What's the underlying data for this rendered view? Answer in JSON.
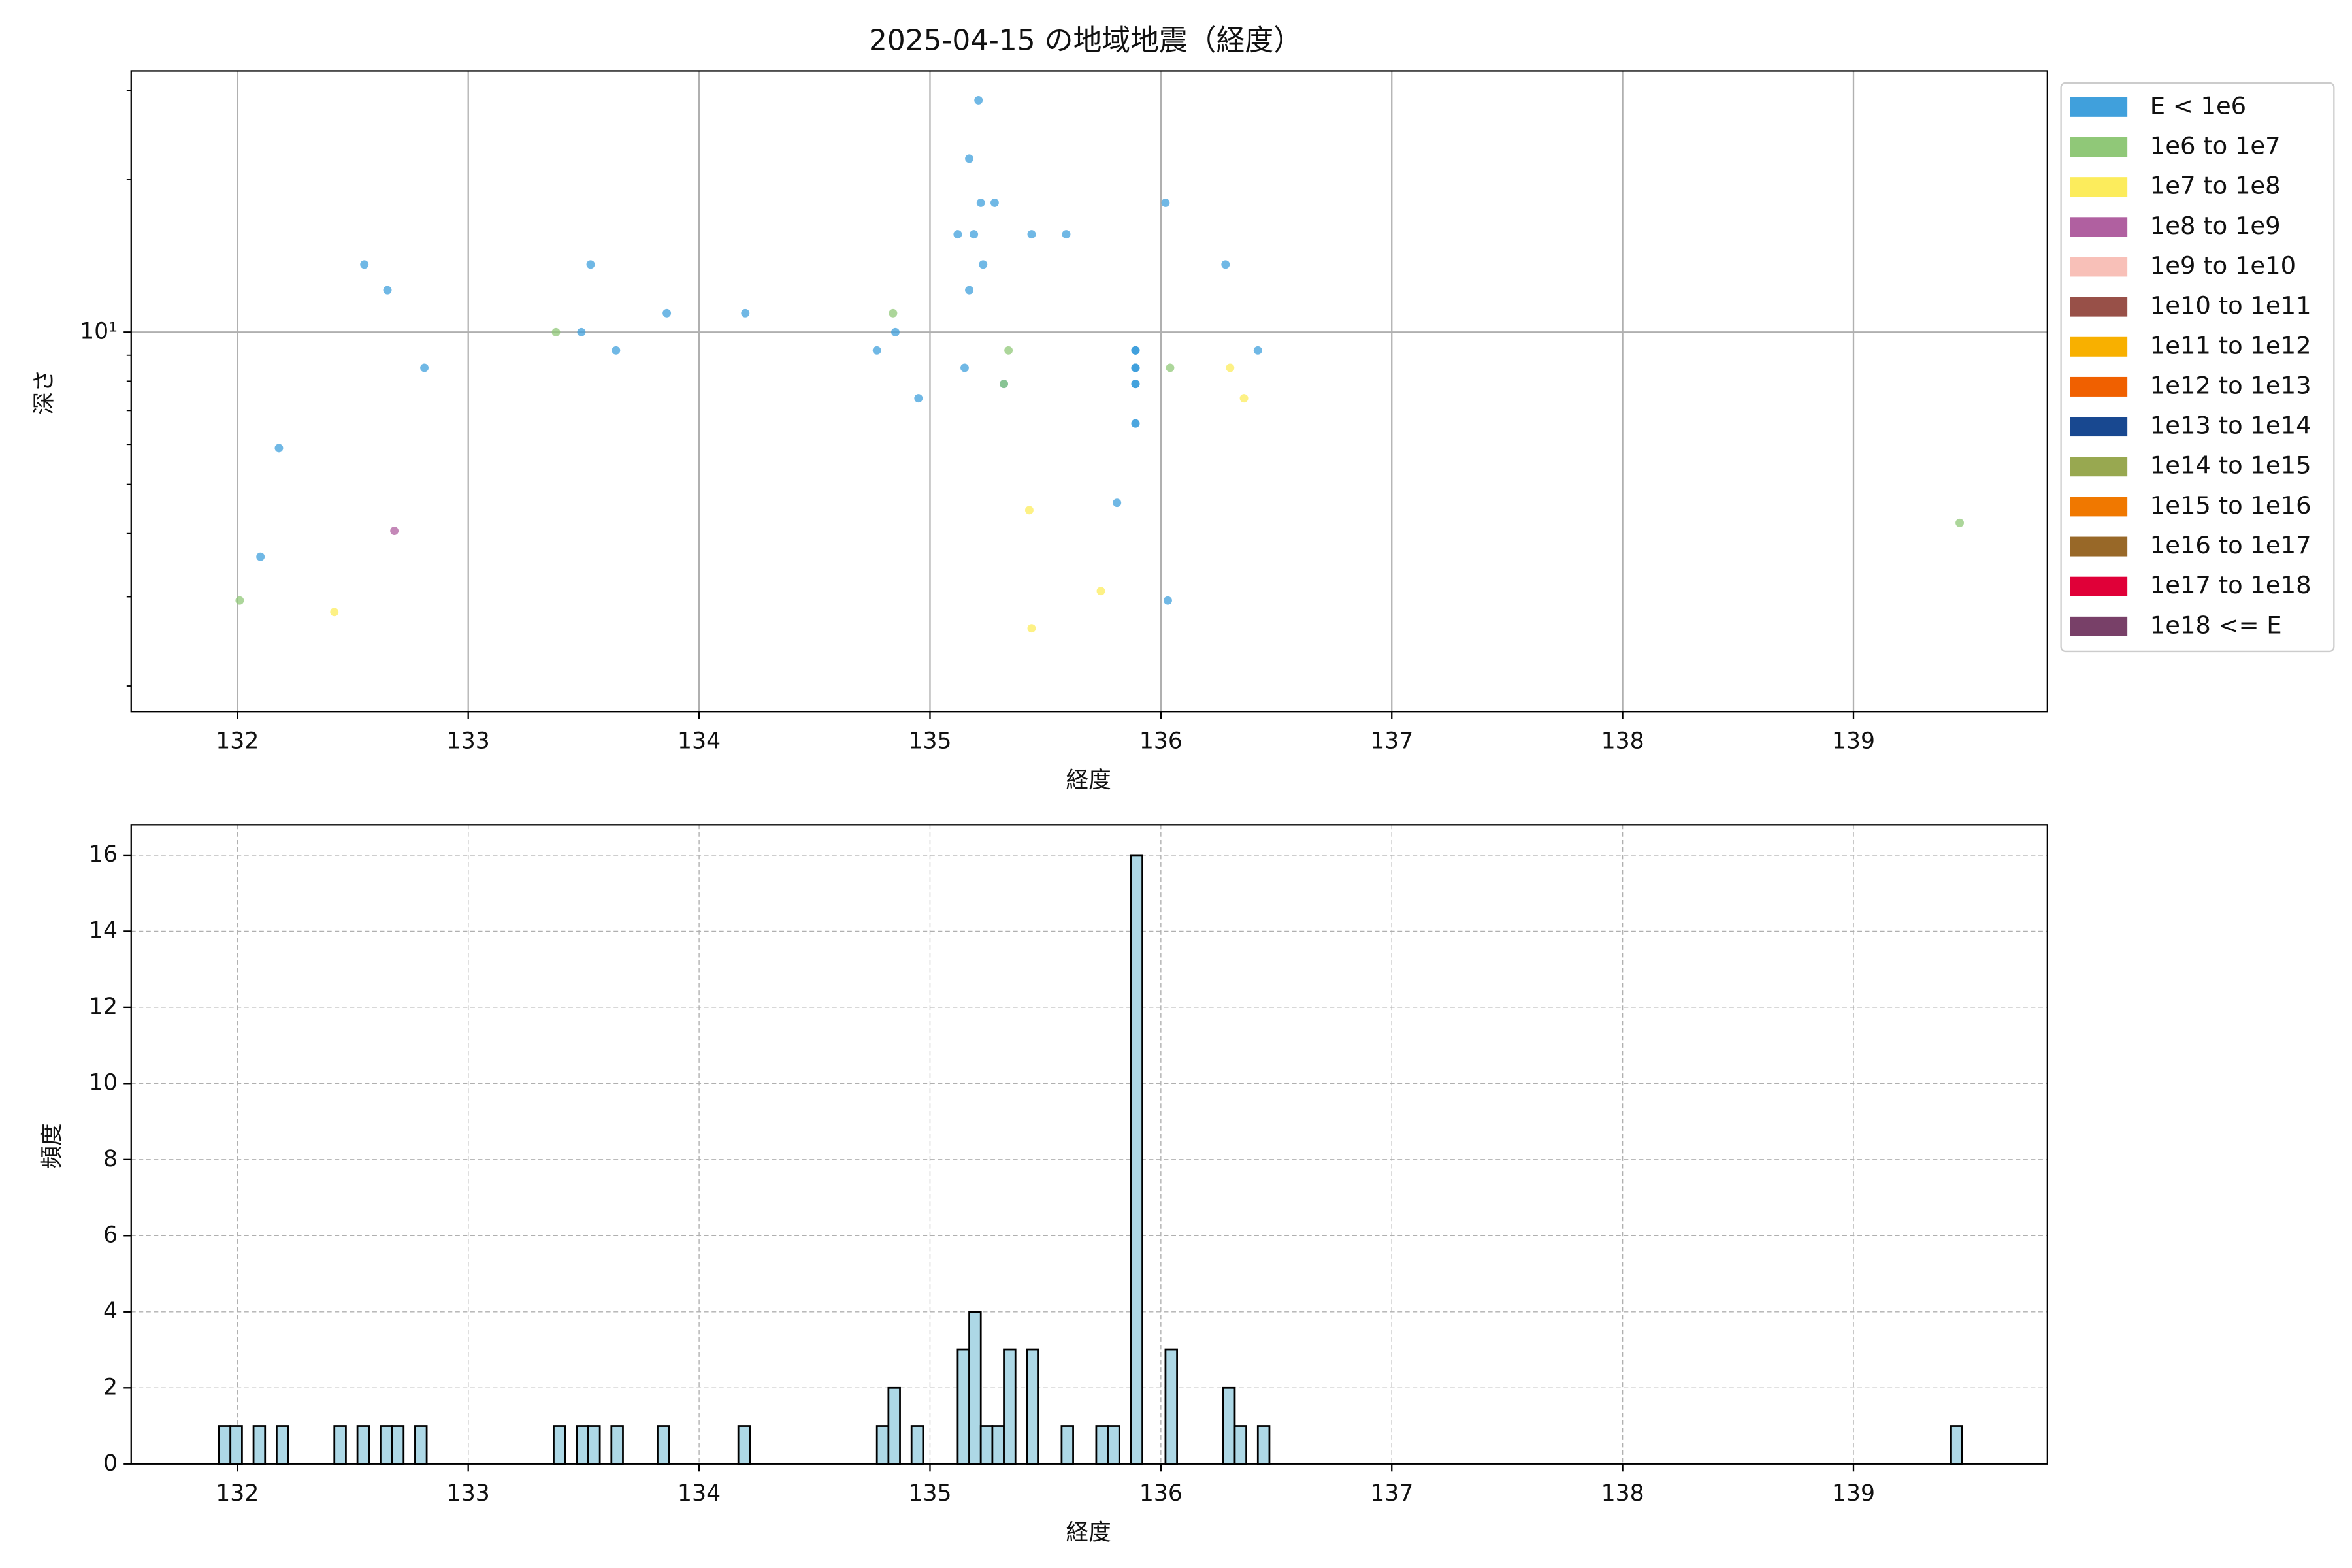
{
  "chart_data": [
    {
      "type": "scatter",
      "title": "2025-04-15 の地域地震（経度）",
      "xlabel": "経度",
      "ylabel": "深さ",
      "xlim": [
        131.54,
        139.84
      ],
      "xticks": [
        132,
        133,
        134,
        135,
        136,
        137,
        138,
        139
      ],
      "ylim": [
        1.78,
        32.8
      ],
      "yscale": "log",
      "yticks": [
        {
          "value": 10,
          "label": "10¹"
        }
      ],
      "yminorticks": [
        2,
        3,
        4,
        5,
        6,
        7,
        8,
        9,
        20,
        30
      ],
      "grid": true,
      "legend": "outside right",
      "series": [
        {
          "name": "E < 1e6",
          "color": "#40a0dc",
          "x": [
            132.55,
            132.65,
            132.81,
            132.18,
            132.1,
            133.53,
            133.49,
            133.64,
            133.86,
            134.2,
            134.77,
            134.85,
            134.95,
            135.21,
            135.17,
            135.22,
            135.28,
            135.12,
            135.19,
            135.23,
            135.17,
            135.15,
            135.32,
            135.44,
            135.59,
            135.89,
            135.89,
            135.89,
            135.89,
            135.89,
            135.89,
            135.89,
            135.89,
            135.89,
            135.89,
            135.89,
            135.89,
            135.89,
            135.89,
            135.89,
            135.89,
            135.81,
            136.02,
            136.03,
            136.28,
            136.42
          ],
          "values": [
            13.6,
            12.1,
            8.5,
            5.9,
            3.6,
            13.6,
            10,
            9.2,
            10.9,
            10.9,
            9.2,
            10,
            7.4,
            28.7,
            22,
            18,
            18,
            15.6,
            15.6,
            13.6,
            12.1,
            8.5,
            7.9,
            15.6,
            15.6,
            9.2,
            9.2,
            9.2,
            9.2,
            9.2,
            8.5,
            8.5,
            8.5,
            8.5,
            8.5,
            8.5,
            7.9,
            7.9,
            7.9,
            6.6,
            6.6,
            4.6,
            18,
            2.95,
            13.6,
            9.2
          ]
        },
        {
          "name": "1e6 to 1e7",
          "color": "#90c878",
          "x": [
            132.01,
            133.38,
            134.84,
            135.34,
            135.32,
            136.04,
            139.46
          ],
          "values": [
            2.95,
            10,
            10.9,
            9.2,
            7.9,
            8.5,
            4.2
          ]
        },
        {
          "name": "1e7 to 1e8",
          "color": "#fcec5c",
          "x": [
            132.42,
            135.43,
            135.44,
            135.74,
            136.3,
            136.36
          ],
          "values": [
            2.8,
            4.45,
            2.6,
            3.08,
            8.5,
            7.4
          ]
        },
        {
          "name": "1e8 to 1e9",
          "color": "#b060a0",
          "x": [
            132.68
          ],
          "values": [
            4.05
          ]
        },
        {
          "name": "1e9 to 1e10",
          "color": "#f8c0b8",
          "x": [],
          "values": []
        },
        {
          "name": "1e10 to 1e11",
          "color": "#985048",
          "x": [],
          "values": []
        },
        {
          "name": "1e11 to 1e12",
          "color": "#f8b000",
          "x": [],
          "values": []
        },
        {
          "name": "1e12 to 1e13",
          "color": "#f06000",
          "x": [],
          "values": []
        },
        {
          "name": "1e13 to 1e14",
          "color": "#184890",
          "x": [],
          "values": []
        },
        {
          "name": "1e14 to 1e15",
          "color": "#98a850",
          "x": [],
          "values": []
        },
        {
          "name": "1e15 to 1e16",
          "color": "#f07800",
          "x": [],
          "values": []
        },
        {
          "name": "1e16 to 1e17",
          "color": "#986828",
          "x": [],
          "values": []
        },
        {
          "name": "1e17 to 1e18",
          "color": "#e00038",
          "x": [],
          "values": []
        },
        {
          "name": "1e18 <= E",
          "color": "#784068",
          "x": [],
          "values": []
        }
      ]
    },
    {
      "type": "histogram",
      "xlabel": "経度",
      "ylabel": "頻度",
      "color": "#add8e6",
      "edgecolor": "#000000",
      "xlim": [
        131.54,
        139.84
      ],
      "xticks": [
        132,
        133,
        134,
        135,
        136,
        137,
        138,
        139
      ],
      "ylim": [
        0,
        16.8
      ],
      "yticks": [
        0,
        2,
        4,
        6,
        8,
        10,
        12,
        14,
        16
      ],
      "grid": true,
      "gridstyle": "dashed",
      "bins": [
        131.92,
        131.97,
        132.02,
        132.07,
        132.12,
        132.17,
        132.22,
        132.27,
        132.32,
        132.37,
        132.42,
        132.47,
        132.52,
        132.57,
        132.62,
        132.67,
        132.72,
        132.77,
        132.82,
        132.87,
        132.92,
        132.97,
        133.02,
        133.07,
        133.12,
        133.17,
        133.22,
        133.27,
        133.32,
        133.37,
        133.42,
        133.47,
        133.52,
        133.57,
        133.62,
        133.67,
        133.72,
        133.77,
        133.82,
        133.87,
        133.92,
        133.97,
        134.02,
        134.07,
        134.12,
        134.17,
        134.22,
        134.27,
        134.32,
        134.37,
        134.42,
        134.47,
        134.52,
        134.57,
        134.62,
        134.67,
        134.72,
        134.77,
        134.82,
        134.87,
        134.92,
        134.97,
        135.02,
        135.07,
        135.12,
        135.17,
        135.22,
        135.27,
        135.32,
        135.37,
        135.42,
        135.47,
        135.52,
        135.57,
        135.62,
        135.67,
        135.72,
        135.77,
        135.82,
        135.87,
        135.92,
        135.97,
        136.02,
        136.07,
        136.12,
        136.17,
        136.22,
        136.27,
        136.32,
        136.37,
        136.42,
        136.47,
        136.52,
        136.57,
        136.62,
        136.67,
        136.72,
        136.77,
        136.82,
        136.87,
        136.92,
        136.97,
        137.02,
        137.07,
        137.12,
        137.17,
        137.22,
        137.27,
        137.32,
        137.37,
        137.42,
        137.47,
        137.52,
        137.57,
        137.62,
        137.67,
        137.72,
        137.77,
        137.82,
        137.87,
        137.92,
        137.97,
        138.02,
        138.07,
        138.12,
        138.17,
        138.22,
        138.27,
        138.32,
        138.37,
        138.42,
        138.47,
        138.52,
        138.57,
        138.62,
        138.67,
        138.72,
        138.77,
        138.82,
        138.87,
        138.92,
        138.97,
        139.02,
        139.07,
        139.12,
        139.17,
        139.22,
        139.27,
        139.32,
        139.37,
        139.42,
        139.47
      ],
      "values": [
        1,
        1,
        0,
        1,
        0,
        1,
        0,
        0,
        0,
        0,
        1,
        0,
        1,
        0,
        1,
        1,
        0,
        1,
        0,
        0,
        0,
        0,
        0,
        0,
        0,
        0,
        0,
        0,
        0,
        1,
        0,
        1,
        1,
        0,
        1,
        0,
        0,
        0,
        1,
        0,
        0,
        0,
        0,
        0,
        0,
        1,
        0,
        0,
        0,
        0,
        0,
        0,
        0,
        0,
        0,
        0,
        0,
        1,
        2,
        0,
        1,
        0,
        0,
        0,
        3,
        4,
        1,
        1,
        3,
        0,
        3,
        0,
        0,
        1,
        0,
        0,
        1,
        1,
        0,
        16,
        0,
        0,
        3,
        0,
        0,
        0,
        0,
        2,
        1,
        0,
        1,
        0,
        0,
        0,
        0,
        0,
        0,
        0,
        0,
        0,
        0,
        0,
        0,
        0,
        0,
        0,
        0,
        0,
        0,
        0,
        0,
        0,
        0,
        0,
        0,
        0,
        0,
        0,
        0,
        0,
        0,
        0,
        0,
        0,
        0,
        0,
        0,
        0,
        0,
        0,
        0,
        0,
        0,
        0,
        0,
        0,
        0,
        0,
        0,
        0,
        0,
        0,
        0,
        0,
        0,
        0,
        0,
        0,
        0,
        0,
        1
      ]
    }
  ]
}
